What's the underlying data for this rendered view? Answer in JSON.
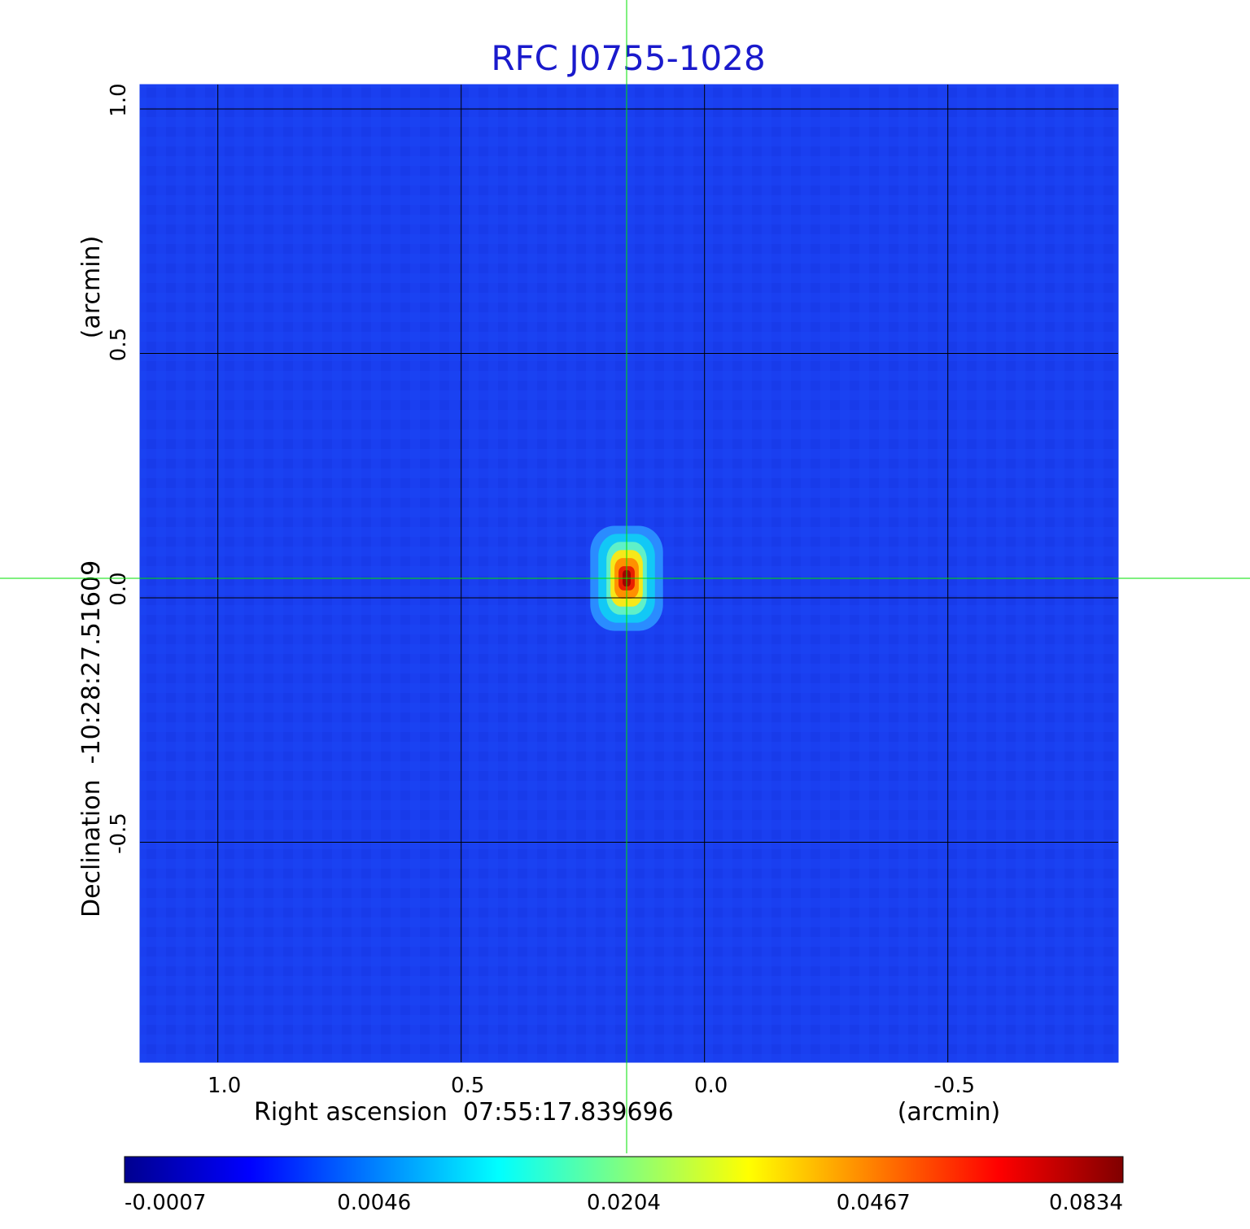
{
  "chart_data": {
    "type": "heatmap",
    "title": "RFC J0755-1028",
    "xlabel": "Right ascension  07:55:17.839696",
    "xunit": "(arcmin)",
    "ylabel": "Declination  -10:28:27.51609",
    "yunit": "(arcmin)",
    "x_axis_reversed": true,
    "xlim": [
      1.16,
      -0.85
    ],
    "ylim": [
      -0.95,
      1.05
    ],
    "x_ticks": [
      {
        "value": 1.0,
        "label": "1.0"
      },
      {
        "value": 0.5,
        "label": "0.5"
      },
      {
        "value": 0.0,
        "label": "0.0"
      },
      {
        "value": -0.5,
        "label": "-0.5"
      }
    ],
    "y_ticks": [
      {
        "value": 1.0,
        "label": "1.0"
      },
      {
        "value": 0.5,
        "label": "0.5"
      },
      {
        "value": 0.0,
        "label": "0.0"
      },
      {
        "value": -0.5,
        "label": "-0.5"
      }
    ],
    "grid": true,
    "colormap": "jet",
    "colorbar": {
      "min": -0.0007,
      "max": 0.0834,
      "ticks": [
        "-0.0007",
        "0.0046",
        "0.0204",
        "0.0467",
        "0.0834"
      ],
      "placement": "bottom"
    },
    "source": {
      "x": 0.16,
      "y": 0.04,
      "peak": 0.0834
    },
    "crosshair": {
      "x": 0.16,
      "y": 0.04,
      "color": "#00e000"
    },
    "colors": {
      "title": "#1a1acc",
      "background_map": "#1a3ff0",
      "grid": "#000000"
    }
  }
}
